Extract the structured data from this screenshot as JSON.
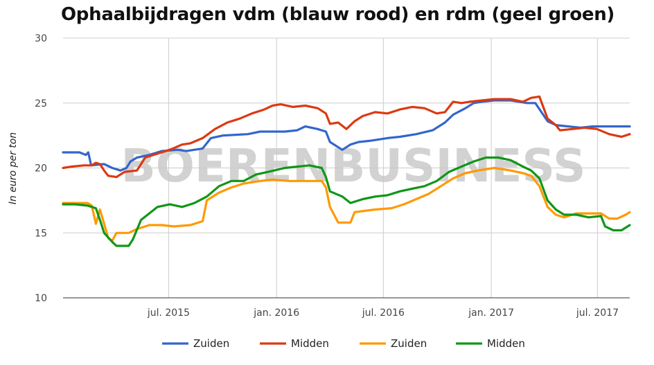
{
  "chart_data": {
    "type": "line",
    "title": "Ophaalbijdragen vdm (blauw rood) en rdm (geel groen)",
    "ylabel": "In euro per ton",
    "xlabel": "",
    "watermark": "BOERENBUSINESS",
    "ylim": [
      10,
      30
    ],
    "yticks": [
      10,
      15,
      20,
      25,
      30
    ],
    "xlim": [
      "2015-01-02",
      "2017-08-25"
    ],
    "xticks": [
      {
        "date": "2015-07-01",
        "label": "jul. 2015"
      },
      {
        "date": "2016-01-01",
        "label": "jan. 2016"
      },
      {
        "date": "2016-07-01",
        "label": "jul. 2016"
      },
      {
        "date": "2017-01-01",
        "label": "jan. 2017"
      },
      {
        "date": "2017-07-01",
        "label": "jul. 2017"
      }
    ],
    "grid": true,
    "legend_position": "bottom",
    "series": [
      {
        "name": "Zuiden",
        "color": "#3366cc",
        "points": [
          [
            "2015-01-02",
            21.2
          ],
          [
            "2015-01-30",
            21.2
          ],
          [
            "2015-02-10",
            21.0
          ],
          [
            "2015-02-14",
            21.2
          ],
          [
            "2015-02-19",
            20.2
          ],
          [
            "2015-03-13",
            20.3
          ],
          [
            "2015-03-27",
            20.0
          ],
          [
            "2015-04-10",
            19.8
          ],
          [
            "2015-04-20",
            20.0
          ],
          [
            "2015-04-27",
            20.5
          ],
          [
            "2015-05-08",
            20.8
          ],
          [
            "2015-05-29",
            21.0
          ],
          [
            "2015-06-19",
            21.3
          ],
          [
            "2015-07-17",
            21.4
          ],
          [
            "2015-07-31",
            21.3
          ],
          [
            "2015-08-28",
            21.5
          ],
          [
            "2015-09-11",
            22.3
          ],
          [
            "2015-10-02",
            22.5
          ],
          [
            "2015-11-13",
            22.6
          ],
          [
            "2015-12-04",
            22.8
          ],
          [
            "2015-12-25",
            22.8
          ],
          [
            "2016-01-15",
            22.8
          ],
          [
            "2016-02-05",
            22.9
          ],
          [
            "2016-02-19",
            23.2
          ],
          [
            "2016-03-11",
            23.0
          ],
          [
            "2016-03-25",
            22.8
          ],
          [
            "2016-04-01",
            22.0
          ],
          [
            "2016-04-22",
            21.4
          ],
          [
            "2016-05-06",
            21.8
          ],
          [
            "2016-05-20",
            22.0
          ],
          [
            "2016-06-10",
            22.1
          ],
          [
            "2016-07-08",
            22.3
          ],
          [
            "2016-07-29",
            22.4
          ],
          [
            "2016-08-26",
            22.6
          ],
          [
            "2016-09-23",
            22.9
          ],
          [
            "2016-10-14",
            23.5
          ],
          [
            "2016-10-28",
            24.1
          ],
          [
            "2016-11-18",
            24.6
          ],
          [
            "2016-12-02",
            25.0
          ],
          [
            "2016-12-16",
            25.1
          ],
          [
            "2017-01-06",
            25.2
          ],
          [
            "2017-02-03",
            25.2
          ],
          [
            "2017-03-03",
            25.0
          ],
          [
            "2017-03-17",
            25.0
          ],
          [
            "2017-04-07",
            23.6
          ],
          [
            "2017-04-21",
            23.3
          ],
          [
            "2017-05-12",
            23.2
          ],
          [
            "2017-06-02",
            23.1
          ],
          [
            "2017-06-23",
            23.2
          ],
          [
            "2017-07-14",
            23.2
          ],
          [
            "2017-08-25",
            23.2
          ]
        ]
      },
      {
        "name": "Midden",
        "color": "#dc3912",
        "points": [
          [
            "2015-01-02",
            20.0
          ],
          [
            "2015-01-16",
            20.1
          ],
          [
            "2015-02-06",
            20.2
          ],
          [
            "2015-02-20",
            20.2
          ],
          [
            "2015-02-27",
            20.4
          ],
          [
            "2015-03-06",
            20.3
          ],
          [
            "2015-03-13",
            19.8
          ],
          [
            "2015-03-20",
            19.4
          ],
          [
            "2015-04-03",
            19.3
          ],
          [
            "2015-04-17",
            19.7
          ],
          [
            "2015-05-08",
            19.8
          ],
          [
            "2015-05-22",
            20.8
          ],
          [
            "2015-06-12",
            21.1
          ],
          [
            "2015-07-03",
            21.4
          ],
          [
            "2015-07-24",
            21.8
          ],
          [
            "2015-08-07",
            21.9
          ],
          [
            "2015-08-28",
            22.3
          ],
          [
            "2015-09-18",
            23.0
          ],
          [
            "2015-10-09",
            23.5
          ],
          [
            "2015-10-30",
            23.8
          ],
          [
            "2015-11-20",
            24.2
          ],
          [
            "2015-12-11",
            24.5
          ],
          [
            "2015-12-25",
            24.8
          ],
          [
            "2016-01-08",
            24.9
          ],
          [
            "2016-01-29",
            24.7
          ],
          [
            "2016-02-19",
            24.8
          ],
          [
            "2016-03-11",
            24.6
          ],
          [
            "2016-03-25",
            24.2
          ],
          [
            "2016-04-01",
            23.4
          ],
          [
            "2016-04-15",
            23.5
          ],
          [
            "2016-04-29",
            23.0
          ],
          [
            "2016-05-13",
            23.6
          ],
          [
            "2016-05-27",
            24.0
          ],
          [
            "2016-06-17",
            24.3
          ],
          [
            "2016-07-08",
            24.2
          ],
          [
            "2016-07-29",
            24.5
          ],
          [
            "2016-08-19",
            24.7
          ],
          [
            "2016-09-09",
            24.6
          ],
          [
            "2016-09-30",
            24.2
          ],
          [
            "2016-10-14",
            24.3
          ],
          [
            "2016-10-28",
            25.1
          ],
          [
            "2016-11-11",
            25.0
          ],
          [
            "2016-11-25",
            25.1
          ],
          [
            "2016-12-16",
            25.2
          ],
          [
            "2017-01-06",
            25.3
          ],
          [
            "2017-02-03",
            25.3
          ],
          [
            "2017-02-24",
            25.1
          ],
          [
            "2017-03-10",
            25.4
          ],
          [
            "2017-03-24",
            25.5
          ],
          [
            "2017-04-07",
            23.8
          ],
          [
            "2017-04-21",
            23.3
          ],
          [
            "2017-04-28",
            22.9
          ],
          [
            "2017-05-19",
            23.0
          ],
          [
            "2017-06-09",
            23.1
          ],
          [
            "2017-06-30",
            23.0
          ],
          [
            "2017-07-21",
            22.6
          ],
          [
            "2017-08-11",
            22.4
          ],
          [
            "2017-08-25",
            22.6
          ]
        ]
      },
      {
        "name": "Zuiden",
        "color": "#ff9900",
        "points": [
          [
            "2015-01-02",
            17.3
          ],
          [
            "2015-02-13",
            17.3
          ],
          [
            "2015-02-20",
            17.1
          ],
          [
            "2015-02-27",
            15.7
          ],
          [
            "2015-03-06",
            16.8
          ],
          [
            "2015-03-13",
            15.7
          ],
          [
            "2015-03-20",
            14.6
          ],
          [
            "2015-03-27",
            14.4
          ],
          [
            "2015-04-03",
            15.0
          ],
          [
            "2015-04-24",
            15.0
          ],
          [
            "2015-05-08",
            15.3
          ],
          [
            "2015-05-29",
            15.6
          ],
          [
            "2015-06-19",
            15.6
          ],
          [
            "2015-07-10",
            15.5
          ],
          [
            "2015-08-07",
            15.6
          ],
          [
            "2015-08-28",
            15.9
          ],
          [
            "2015-09-04",
            17.5
          ],
          [
            "2015-09-25",
            18.1
          ],
          [
            "2015-10-16",
            18.5
          ],
          [
            "2015-11-06",
            18.8
          ],
          [
            "2015-12-04",
            19.0
          ],
          [
            "2015-12-25",
            19.1
          ],
          [
            "2016-01-22",
            19.0
          ],
          [
            "2016-02-19",
            19.0
          ],
          [
            "2016-03-18",
            19.0
          ],
          [
            "2016-03-25",
            18.5
          ],
          [
            "2016-04-01",
            17.0
          ],
          [
            "2016-04-15",
            15.8
          ],
          [
            "2016-05-06",
            15.8
          ],
          [
            "2016-05-13",
            16.6
          ],
          [
            "2016-06-17",
            16.8
          ],
          [
            "2016-07-15",
            16.9
          ],
          [
            "2016-08-05",
            17.2
          ],
          [
            "2016-08-26",
            17.6
          ],
          [
            "2016-09-16",
            18.0
          ],
          [
            "2016-10-07",
            18.6
          ],
          [
            "2016-10-28",
            19.2
          ],
          [
            "2016-11-18",
            19.6
          ],
          [
            "2016-12-09",
            19.8
          ],
          [
            "2017-01-06",
            20.0
          ],
          [
            "2017-02-03",
            19.8
          ],
          [
            "2017-02-24",
            19.6
          ],
          [
            "2017-03-10",
            19.4
          ],
          [
            "2017-03-24",
            18.6
          ],
          [
            "2017-04-07",
            17.0
          ],
          [
            "2017-04-21",
            16.4
          ],
          [
            "2017-05-05",
            16.2
          ],
          [
            "2017-05-26",
            16.5
          ],
          [
            "2017-07-07",
            16.5
          ],
          [
            "2017-07-21",
            16.1
          ],
          [
            "2017-08-04",
            16.1
          ],
          [
            "2017-08-18",
            16.4
          ],
          [
            "2017-08-25",
            16.6
          ]
        ]
      },
      {
        "name": "Midden",
        "color": "#109618",
        "points": [
          [
            "2015-01-02",
            17.2
          ],
          [
            "2015-01-23",
            17.2
          ],
          [
            "2015-02-13",
            17.1
          ],
          [
            "2015-02-27",
            16.9
          ],
          [
            "2015-03-06",
            16.0
          ],
          [
            "2015-03-13",
            15.0
          ],
          [
            "2015-03-27",
            14.3
          ],
          [
            "2015-04-03",
            14.0
          ],
          [
            "2015-04-24",
            14.0
          ],
          [
            "2015-05-01",
            14.5
          ],
          [
            "2015-05-15",
            16.0
          ],
          [
            "2015-05-29",
            16.5
          ],
          [
            "2015-06-12",
            17.0
          ],
          [
            "2015-07-03",
            17.2
          ],
          [
            "2015-07-24",
            17.0
          ],
          [
            "2015-08-14",
            17.3
          ],
          [
            "2015-09-04",
            17.8
          ],
          [
            "2015-09-25",
            18.6
          ],
          [
            "2015-10-16",
            19.0
          ],
          [
            "2015-11-06",
            19.0
          ],
          [
            "2015-11-27",
            19.5
          ],
          [
            "2015-12-18",
            19.7
          ],
          [
            "2016-01-15",
            20.0
          ],
          [
            "2016-02-05",
            20.1
          ],
          [
            "2016-02-26",
            20.2
          ],
          [
            "2016-03-18",
            20.0
          ],
          [
            "2016-03-25",
            19.3
          ],
          [
            "2016-04-01",
            18.2
          ],
          [
            "2016-04-22",
            17.8
          ],
          [
            "2016-05-06",
            17.3
          ],
          [
            "2016-05-27",
            17.6
          ],
          [
            "2016-06-17",
            17.8
          ],
          [
            "2016-07-08",
            17.9
          ],
          [
            "2016-07-29",
            18.2
          ],
          [
            "2016-08-19",
            18.4
          ],
          [
            "2016-09-09",
            18.6
          ],
          [
            "2016-09-30",
            19.0
          ],
          [
            "2016-10-21",
            19.7
          ],
          [
            "2016-11-11",
            20.1
          ],
          [
            "2016-12-02",
            20.5
          ],
          [
            "2016-12-23",
            20.8
          ],
          [
            "2017-01-13",
            20.8
          ],
          [
            "2017-02-03",
            20.6
          ],
          [
            "2017-02-24",
            20.1
          ],
          [
            "2017-03-10",
            19.8
          ],
          [
            "2017-03-24",
            19.2
          ],
          [
            "2017-04-07",
            17.5
          ],
          [
            "2017-04-21",
            16.8
          ],
          [
            "2017-05-05",
            16.4
          ],
          [
            "2017-05-26",
            16.4
          ],
          [
            "2017-06-16",
            16.2
          ],
          [
            "2017-07-07",
            16.3
          ],
          [
            "2017-07-14",
            15.5
          ],
          [
            "2017-07-28",
            15.2
          ],
          [
            "2017-08-11",
            15.2
          ],
          [
            "2017-08-25",
            15.6
          ]
        ]
      }
    ]
  }
}
